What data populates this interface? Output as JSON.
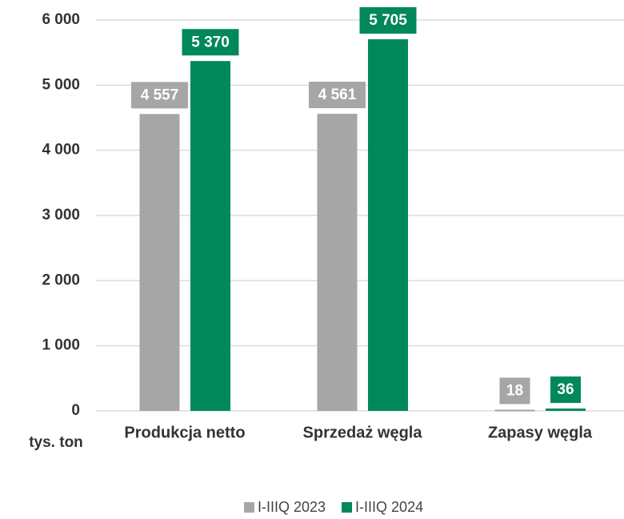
{
  "chart_data": {
    "type": "bar",
    "categories": [
      "Produkcja netto",
      "Sprzedaż węgla",
      "Zapasy węgla"
    ],
    "series": [
      {
        "name": "I-IIIQ 2023",
        "color": "#a6a6a6",
        "values": [
          4557,
          4561,
          18
        ],
        "value_labels": [
          "4 557",
          "4 561",
          "18"
        ]
      },
      {
        "name": "I-IIIQ 2024",
        "color": "#00875a",
        "values": [
          5370,
          5705,
          36
        ],
        "value_labels": [
          "5 370",
          "5 705",
          "36"
        ]
      }
    ],
    "y_label": "tys. ton",
    "ylim": [
      0,
      6000
    ],
    "yticks": [
      0,
      {
        "value": 1000,
        "label": "1 000"
      },
      {
        "value": 2000,
        "label": "2 000"
      },
      {
        "value": 3000,
        "label": "3 000"
      },
      {
        "value": 4000,
        "label": "4 000"
      },
      {
        "value": 5000,
        "label": "5 000"
      },
      {
        "value": 6000,
        "label": "6 000"
      }
    ],
    "grid": true,
    "legend": "bottom"
  }
}
